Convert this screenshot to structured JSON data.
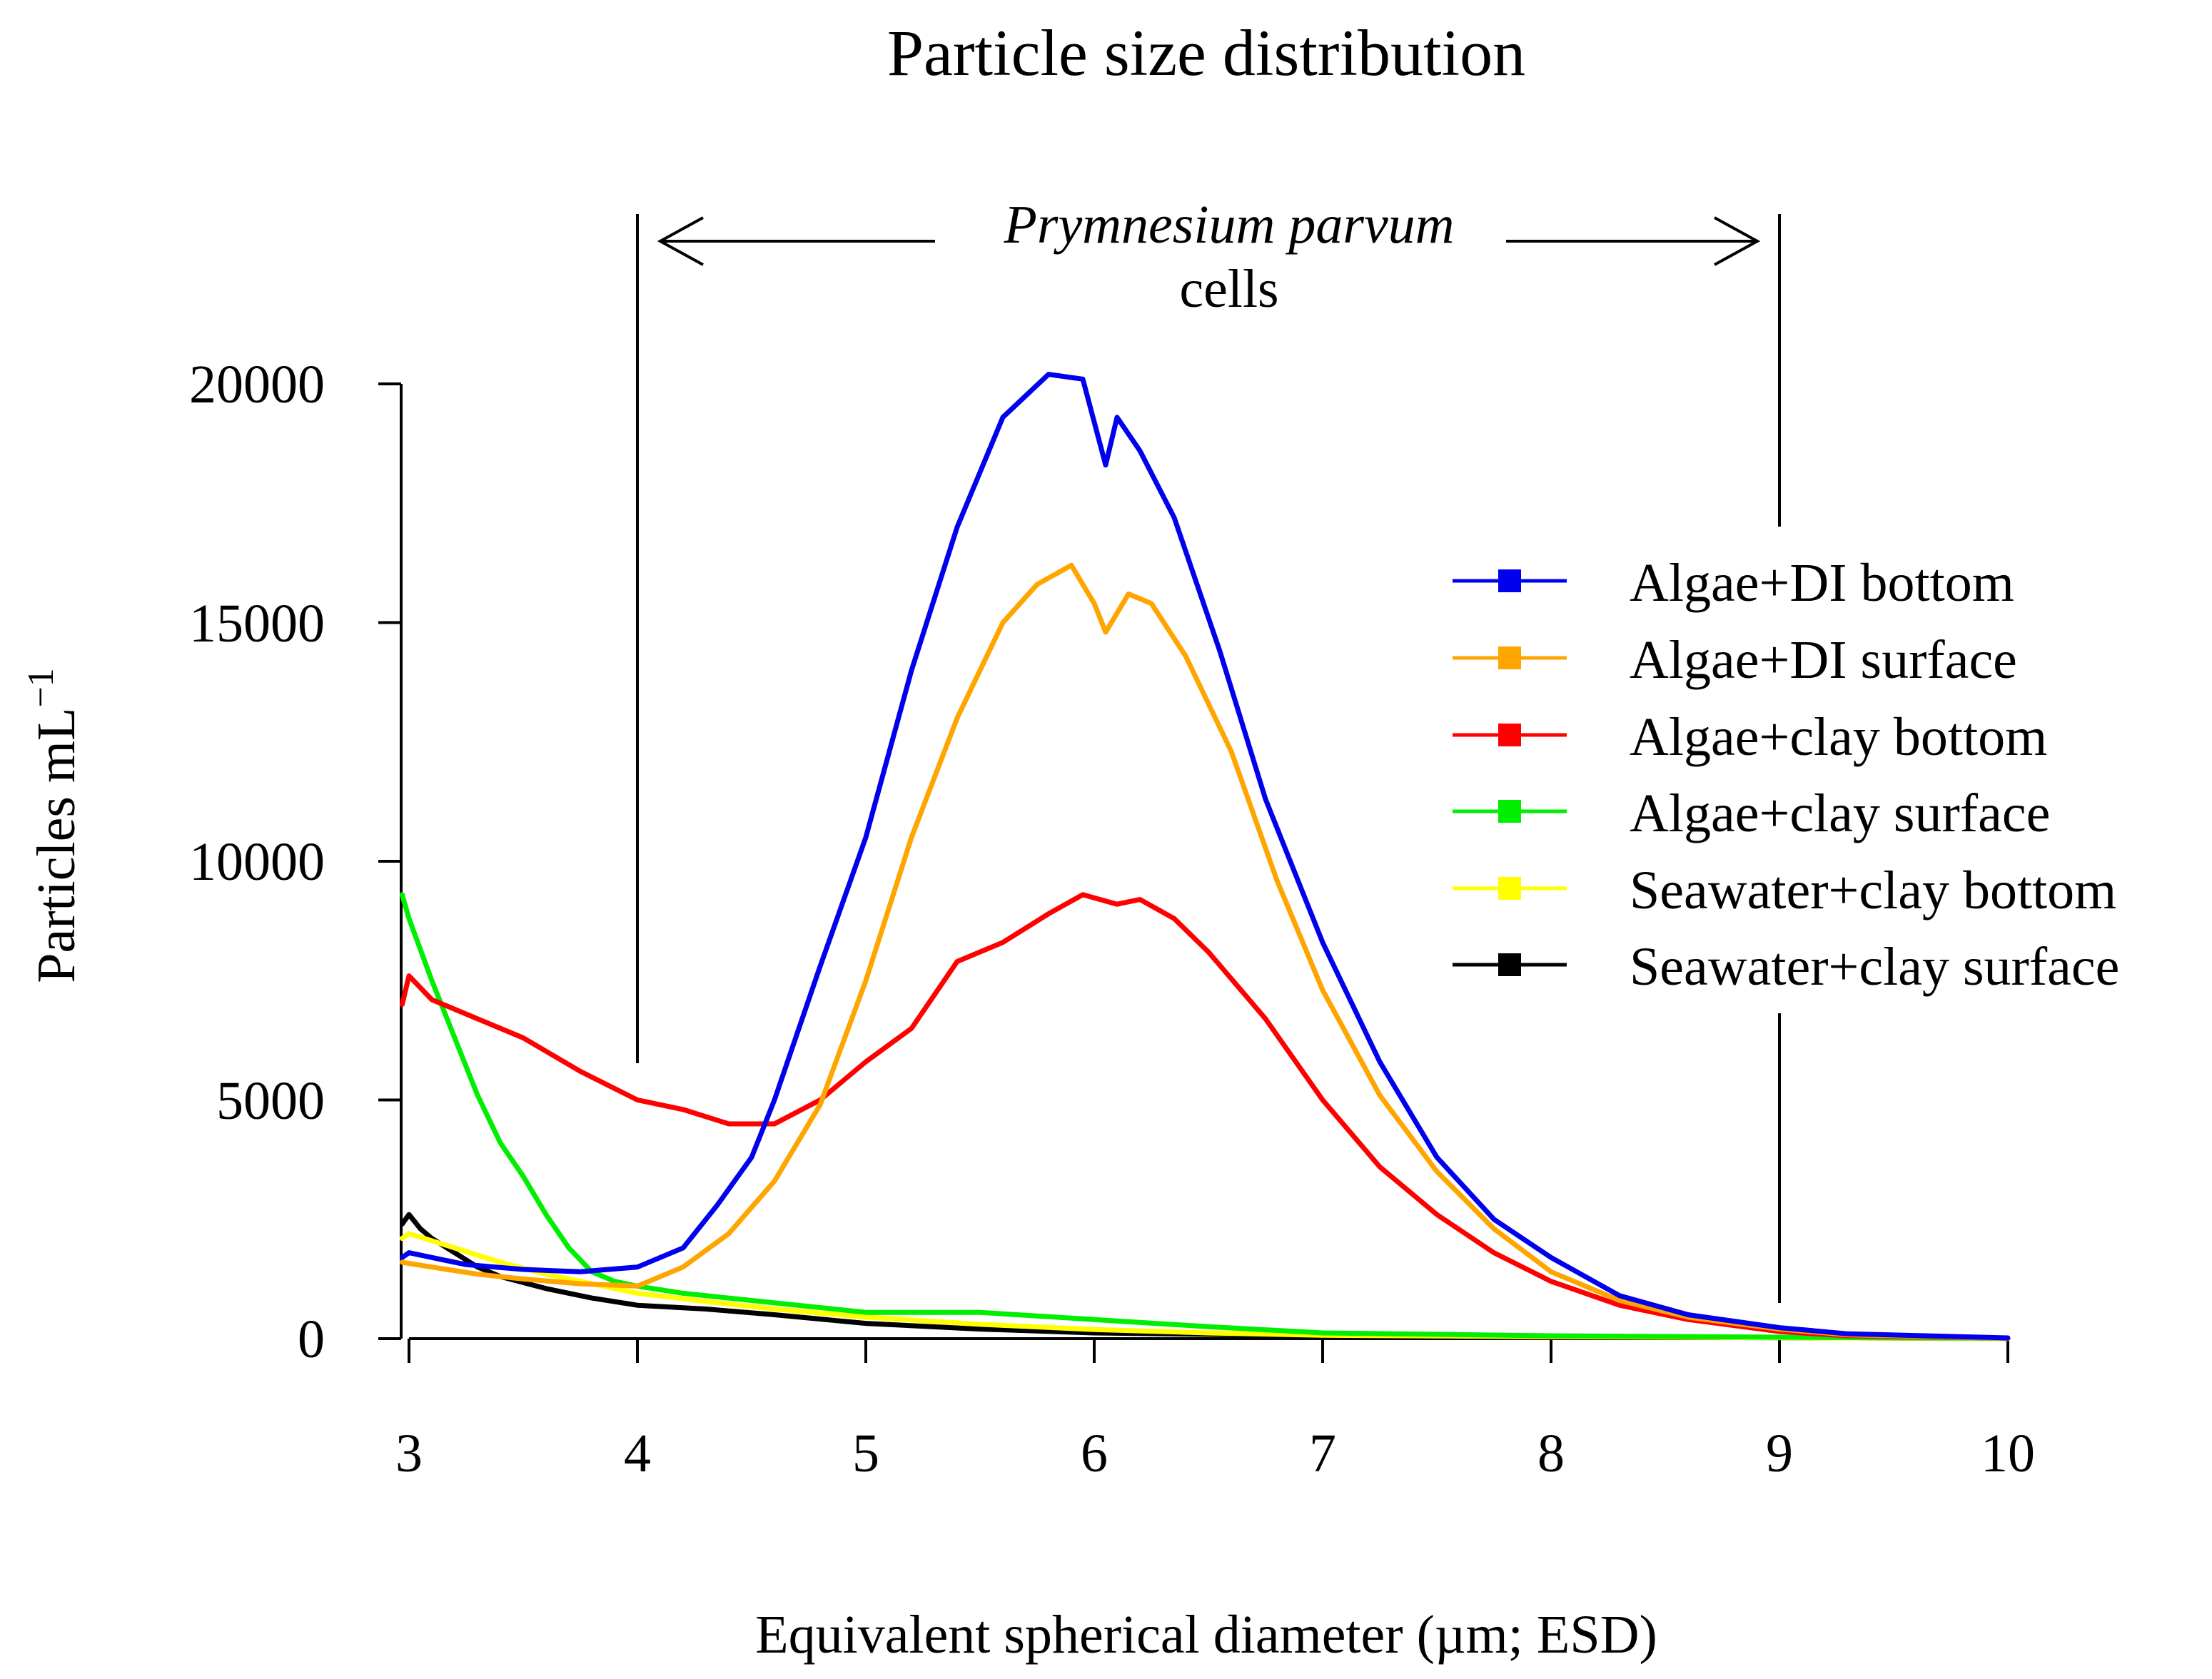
{
  "chart_data": {
    "type": "line",
    "title": "Particle size distribution",
    "xlabel": "Equivalent spherical diameter (µm; ESD)",
    "ylabel": "Particles mL",
    "ylabel_superscript": "−1",
    "xlim": [
      3,
      10
    ],
    "ylim": [
      0,
      20000
    ],
    "xticks": [
      3,
      4,
      5,
      6,
      7,
      8,
      9,
      10
    ],
    "yticks": [
      0,
      5000,
      10000,
      15000,
      20000
    ],
    "grid": false,
    "legend_position": "right",
    "annotation": {
      "species": "Prymnesium parvum",
      "label": "cells",
      "x_range": [
        4,
        9
      ]
    },
    "series": [
      {
        "name": "Algae+DI bottom",
        "color": "#0000ee",
        "x": [
          2.97,
          3.0,
          3.1,
          3.25,
          3.5,
          3.75,
          4.0,
          4.2,
          4.35,
          4.5,
          4.6,
          4.8,
          5.0,
          5.2,
          5.4,
          5.6,
          5.8,
          5.95,
          6.05,
          6.1,
          6.2,
          6.35,
          6.55,
          6.75,
          7.0,
          7.25,
          7.5,
          7.75,
          8.0,
          8.3,
          8.6,
          9.0,
          9.3,
          10.0
        ],
        "values": [
          1700,
          1800,
          1700,
          1550,
          1450,
          1400,
          1500,
          1900,
          2800,
          3800,
          5000,
          7800,
          10500,
          14000,
          17000,
          19300,
          20200,
          20100,
          18300,
          19300,
          18600,
          17200,
          14400,
          11300,
          8300,
          5800,
          3800,
          2500,
          1700,
          900,
          500,
          230,
          100,
          15
        ]
      },
      {
        "name": "Algae+DI surface",
        "color": "#ffa500",
        "x": [
          2.97,
          3.1,
          3.3,
          3.5,
          3.75,
          4.0,
          4.2,
          4.4,
          4.6,
          4.8,
          5.0,
          5.2,
          5.4,
          5.6,
          5.75,
          5.9,
          6.0,
          6.05,
          6.15,
          6.25,
          6.4,
          6.6,
          6.8,
          7.0,
          7.25,
          7.5,
          7.75,
          8.0,
          8.3,
          8.6,
          9.0,
          9.3,
          10.0
        ],
        "values": [
          1600,
          1500,
          1350,
          1250,
          1150,
          1100,
          1500,
          2200,
          3300,
          4900,
          7500,
          10500,
          13000,
          15000,
          15800,
          16200,
          15400,
          14800,
          15600,
          15400,
          14300,
          12300,
          9600,
          7300,
          5100,
          3500,
          2300,
          1400,
          800,
          450,
          200,
          80,
          10
        ]
      },
      {
        "name": "Algae+clay bottom",
        "color": "#ff0000",
        "x": [
          2.97,
          3.0,
          3.1,
          3.25,
          3.5,
          3.75,
          4.0,
          4.2,
          4.4,
          4.6,
          4.8,
          5.0,
          5.2,
          5.4,
          5.6,
          5.8,
          5.95,
          6.1,
          6.2,
          6.35,
          6.5,
          6.75,
          7.0,
          7.25,
          7.5,
          7.75,
          8.0,
          8.3,
          8.6,
          9.0,
          9.3,
          10.0
        ],
        "values": [
          7000,
          7600,
          7100,
          6800,
          6300,
          5600,
          5000,
          4800,
          4500,
          4500,
          5000,
          5800,
          6500,
          7900,
          8300,
          8900,
          9300,
          9100,
          9200,
          8800,
          8100,
          6700,
          5000,
          3600,
          2600,
          1800,
          1200,
          700,
          400,
          150,
          60,
          10
        ]
      },
      {
        "name": "Algae+clay surface",
        "color": "#00ee00",
        "x": [
          2.97,
          3.0,
          3.1,
          3.2,
          3.3,
          3.4,
          3.5,
          3.6,
          3.7,
          3.8,
          3.9,
          4.0,
          4.2,
          4.5,
          5.0,
          5.5,
          6.0,
          6.5,
          7.0,
          8.0,
          9.0,
          10.0
        ],
        "values": [
          9300,
          8800,
          7500,
          6300,
          5100,
          4100,
          3400,
          2600,
          1900,
          1400,
          1200,
          1100,
          950,
          800,
          550,
          550,
          400,
          250,
          120,
          60,
          30,
          10
        ]
      },
      {
        "name": "Seawater+clay bottom",
        "color": "#ffff00",
        "x": [
          2.97,
          3.0,
          3.2,
          3.4,
          3.6,
          3.8,
          4.0,
          4.3,
          4.6,
          5.0,
          5.5,
          6.0,
          6.5,
          7.0,
          8.0,
          9.0,
          10.0
        ],
        "values": [
          2100,
          2200,
          1900,
          1600,
          1350,
          1150,
          950,
          780,
          620,
          450,
          300,
          190,
          120,
          70,
          40,
          20,
          5
        ]
      },
      {
        "name": "Seawater+clay surface",
        "color": "#000000",
        "x": [
          2.97,
          3.0,
          3.05,
          3.1,
          3.2,
          3.3,
          3.4,
          3.6,
          3.8,
          4.0,
          4.3,
          4.6,
          5.0,
          5.5,
          6.0,
          6.5,
          7.0,
          8.0,
          9.0,
          10.0
        ],
        "values": [
          2400,
          2600,
          2300,
          2100,
          1800,
          1500,
          1300,
          1050,
          850,
          700,
          620,
          500,
          320,
          200,
          120,
          90,
          60,
          40,
          20,
          5
        ]
      }
    ]
  }
}
